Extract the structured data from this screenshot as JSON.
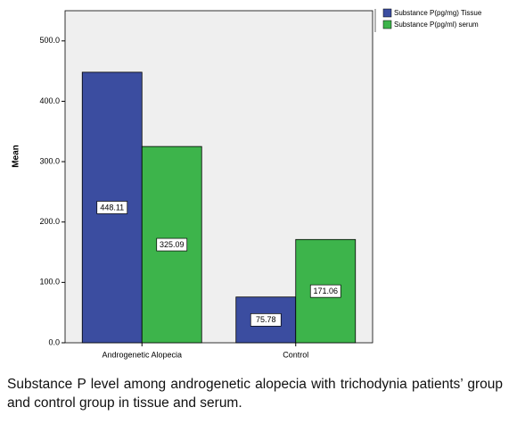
{
  "chart_data": {
    "type": "bar",
    "y_label": "Mean",
    "categories": [
      "Androgenetic Alopecia",
      "Control"
    ],
    "series": [
      {
        "name": "Substance P(pg/mg) Tissue",
        "color": "#3b4da0",
        "values": [
          448.11,
          75.78
        ]
      },
      {
        "name": "Substance P(pg/ml) serum",
        "color": "#3db44b",
        "values": [
          325.09,
          171.06
        ]
      }
    ],
    "ylim": [
      0,
      550
    ],
    "yticks": [
      {
        "value": 0,
        "label": "0.0"
      },
      {
        "value": 100,
        "label": "100.0"
      },
      {
        "value": 200,
        "label": "200.0"
      },
      {
        "value": 300,
        "label": "300.0"
      },
      {
        "value": 400,
        "label": "400.0"
      },
      {
        "value": 500,
        "label": "500.0"
      }
    ],
    "legend": "top-right",
    "caption": "Substance P level among androgenetic alopecia with trichodynia patients’ group and control group in tissue and serum."
  }
}
